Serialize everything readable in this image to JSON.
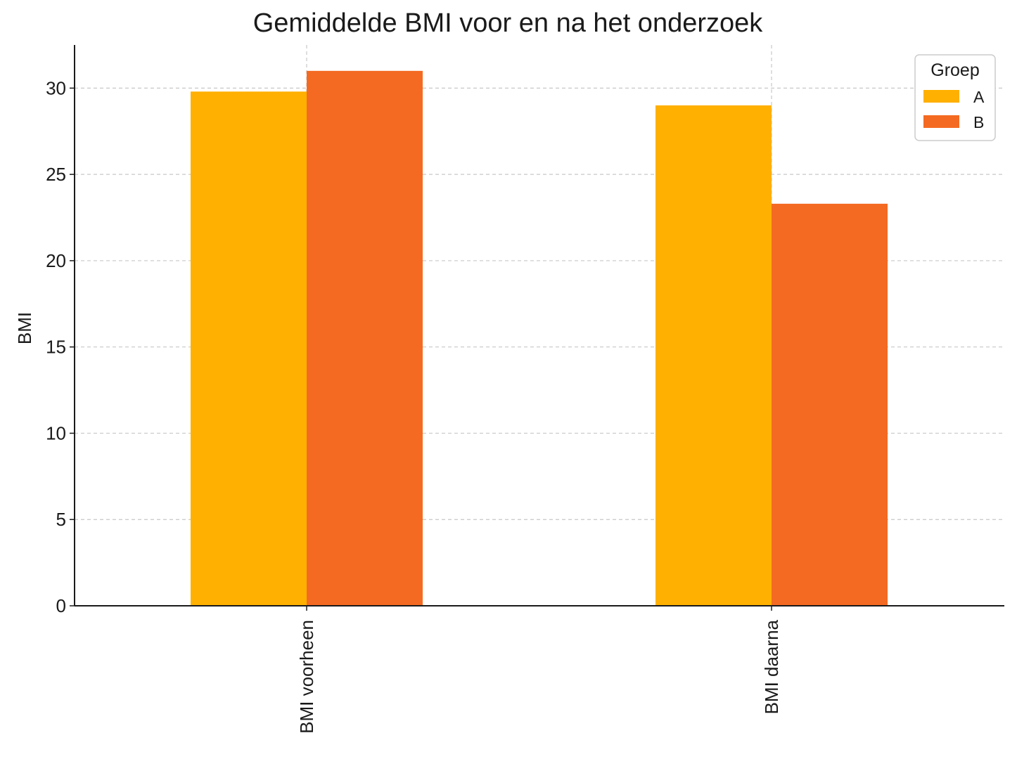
{
  "chart_data": {
    "type": "bar",
    "title": "Gemiddelde BMI voor en na het onderzoek",
    "xlabel": "",
    "ylabel": "BMI",
    "categories": [
      "BMI voorheen",
      "BMI daarna"
    ],
    "series": [
      {
        "name": "A",
        "values": [
          29.8,
          29.0
        ],
        "color": "#FFB000"
      },
      {
        "name": "B",
        "values": [
          31.0,
          23.3
        ],
        "color": "#F46A22"
      }
    ],
    "ylim": [
      0,
      32.5
    ],
    "yticks": [
      0,
      5,
      10,
      15,
      20,
      25,
      30
    ],
    "grid": true,
    "legend": {
      "title": "Groep",
      "position": "top-right"
    }
  }
}
